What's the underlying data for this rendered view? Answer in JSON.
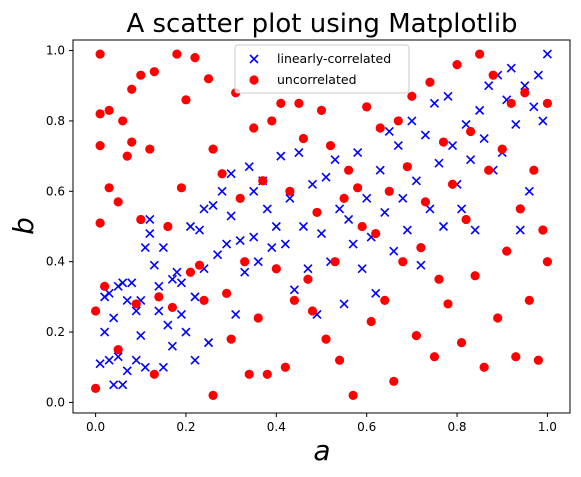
{
  "chart_data": {
    "type": "scatter",
    "title": "A scatter plot using Matplotlib",
    "xlabel": "a",
    "ylabel": "b",
    "xlim": [
      -0.05,
      1.05
    ],
    "ylim": [
      -0.03,
      1.03
    ],
    "x_ticks": [
      "0.0",
      "0.2",
      "0.4",
      "0.6",
      "0.8",
      "1.0"
    ],
    "y_ticks": [
      "0.0",
      "0.2",
      "0.4",
      "0.6",
      "0.8",
      "1.0"
    ],
    "grid": false,
    "legend_position": "top-center",
    "series": [
      {
        "name": "linearly-correlated",
        "marker": "x",
        "color": "#0000ff",
        "points": [
          [
            0.01,
            0.11
          ],
          [
            0.02,
            0.2
          ],
          [
            0.02,
            0.3
          ],
          [
            0.03,
            0.12
          ],
          [
            0.03,
            0.31
          ],
          [
            0.04,
            0.24
          ],
          [
            0.04,
            0.05
          ],
          [
            0.05,
            0.13
          ],
          [
            0.05,
            0.33
          ],
          [
            0.06,
            0.05
          ],
          [
            0.06,
            0.34
          ],
          [
            0.07,
            0.29
          ],
          [
            0.07,
            0.09
          ],
          [
            0.08,
            0.34
          ],
          [
            0.09,
            0.26
          ],
          [
            0.09,
            0.12
          ],
          [
            0.1,
            0.19
          ],
          [
            0.1,
            0.29
          ],
          [
            0.11,
            0.44
          ],
          [
            0.11,
            0.1
          ],
          [
            0.12,
            0.48
          ],
          [
            0.12,
            0.52
          ],
          [
            0.13,
            0.39
          ],
          [
            0.14,
            0.26
          ],
          [
            0.14,
            0.33
          ],
          [
            0.15,
            0.44
          ],
          [
            0.15,
            0.1
          ],
          [
            0.16,
            0.22
          ],
          [
            0.17,
            0.35
          ],
          [
            0.17,
            0.16
          ],
          [
            0.18,
            0.37
          ],
          [
            0.19,
            0.34
          ],
          [
            0.19,
            0.25
          ],
          [
            0.2,
            0.2
          ],
          [
            0.21,
            0.5
          ],
          [
            0.22,
            0.12
          ],
          [
            0.22,
            0.3
          ],
          [
            0.23,
            0.49
          ],
          [
            0.24,
            0.55
          ],
          [
            0.24,
            0.38
          ],
          [
            0.25,
            0.17
          ],
          [
            0.26,
            0.56
          ],
          [
            0.27,
            0.42
          ],
          [
            0.28,
            0.6
          ],
          [
            0.29,
            0.45
          ],
          [
            0.3,
            0.53
          ],
          [
            0.3,
            0.65
          ],
          [
            0.31,
            0.25
          ],
          [
            0.32,
            0.46
          ],
          [
            0.33,
            0.37
          ],
          [
            0.34,
            0.67
          ],
          [
            0.35,
            0.47
          ],
          [
            0.35,
            0.6
          ],
          [
            0.36,
            0.4
          ],
          [
            0.37,
            0.63
          ],
          [
            0.38,
            0.55
          ],
          [
            0.39,
            0.44
          ],
          [
            0.4,
            0.5
          ],
          [
            0.41,
            0.7
          ],
          [
            0.42,
            0.45
          ],
          [
            0.43,
            0.58
          ],
          [
            0.44,
            0.32
          ],
          [
            0.45,
            0.71
          ],
          [
            0.46,
            0.5
          ],
          [
            0.47,
            0.38
          ],
          [
            0.48,
            0.62
          ],
          [
            0.49,
            0.25
          ],
          [
            0.5,
            0.48
          ],
          [
            0.51,
            0.64
          ],
          [
            0.52,
            0.4
          ],
          [
            0.53,
            0.69
          ],
          [
            0.54,
            0.55
          ],
          [
            0.55,
            0.28
          ],
          [
            0.56,
            0.52
          ],
          [
            0.57,
            0.45
          ],
          [
            0.58,
            0.71
          ],
          [
            0.59,
            0.38
          ],
          [
            0.6,
            0.58
          ],
          [
            0.61,
            0.47
          ],
          [
            0.62,
            0.31
          ],
          [
            0.63,
            0.66
          ],
          [
            0.64,
            0.54
          ],
          [
            0.65,
            0.77
          ],
          [
            0.66,
            0.43
          ],
          [
            0.67,
            0.73
          ],
          [
            0.68,
            0.58
          ],
          [
            0.69,
            0.49
          ],
          [
            0.7,
            0.8
          ],
          [
            0.71,
            0.63
          ],
          [
            0.72,
            0.39
          ],
          [
            0.73,
            0.76
          ],
          [
            0.74,
            0.55
          ],
          [
            0.75,
            0.85
          ],
          [
            0.76,
            0.68
          ],
          [
            0.77,
            0.5
          ],
          [
            0.78,
            0.87
          ],
          [
            0.79,
            0.73
          ],
          [
            0.8,
            0.62
          ],
          [
            0.81,
            0.55
          ],
          [
            0.82,
            0.79
          ],
          [
            0.83,
            0.69
          ],
          [
            0.84,
            0.49
          ],
          [
            0.85,
            0.83
          ],
          [
            0.86,
            0.75
          ],
          [
            0.87,
            0.9
          ],
          [
            0.88,
            0.66
          ],
          [
            0.89,
            0.93
          ],
          [
            0.9,
            0.71
          ],
          [
            0.91,
            0.86
          ],
          [
            0.92,
            0.95
          ],
          [
            0.93,
            0.79
          ],
          [
            0.94,
            0.49
          ],
          [
            0.95,
            0.9
          ],
          [
            0.96,
            0.6
          ],
          [
            0.97,
            0.84
          ],
          [
            0.98,
            0.93
          ],
          [
            0.99,
            0.8
          ],
          [
            1.0,
            0.99
          ]
        ]
      },
      {
        "name": "uncorrelated",
        "marker": "o",
        "color": "#ff0000",
        "points": [
          [
            0.01,
            0.99
          ],
          [
            0.01,
            0.82
          ],
          [
            0.01,
            0.73
          ],
          [
            0.01,
            0.51
          ],
          [
            0.0,
            0.26
          ],
          [
            0.0,
            0.04
          ],
          [
            0.02,
            0.33
          ],
          [
            0.03,
            0.83
          ],
          [
            0.03,
            0.61
          ],
          [
            0.05,
            0.57
          ],
          [
            0.05,
            0.15
          ],
          [
            0.06,
            0.8
          ],
          [
            0.07,
            0.7
          ],
          [
            0.08,
            0.89
          ],
          [
            0.08,
            0.74
          ],
          [
            0.09,
            0.28
          ],
          [
            0.1,
            0.52
          ],
          [
            0.1,
            0.93
          ],
          [
            0.12,
            0.72
          ],
          [
            0.13,
            0.94
          ],
          [
            0.13,
            0.08
          ],
          [
            0.14,
            0.3
          ],
          [
            0.16,
            0.5
          ],
          [
            0.17,
            0.27
          ],
          [
            0.18,
            0.99
          ],
          [
            0.19,
            0.61
          ],
          [
            0.2,
            0.86
          ],
          [
            0.21,
            0.37
          ],
          [
            0.22,
            0.98
          ],
          [
            0.23,
            0.39
          ],
          [
            0.24,
            0.29
          ],
          [
            0.25,
            0.92
          ],
          [
            0.26,
            0.72
          ],
          [
            0.26,
            0.02
          ],
          [
            0.28,
            0.65
          ],
          [
            0.29,
            0.31
          ],
          [
            0.3,
            0.18
          ],
          [
            0.31,
            0.88
          ],
          [
            0.32,
            0.58
          ],
          [
            0.33,
            0.4
          ],
          [
            0.34,
            0.08
          ],
          [
            0.35,
            0.78
          ],
          [
            0.36,
            0.24
          ],
          [
            0.37,
            0.63
          ],
          [
            0.38,
            0.08
          ],
          [
            0.39,
            0.8
          ],
          [
            0.4,
            0.38
          ],
          [
            0.41,
            0.85
          ],
          [
            0.42,
            0.1
          ],
          [
            0.43,
            0.6
          ],
          [
            0.44,
            0.29
          ],
          [
            0.45,
            0.85
          ],
          [
            0.46,
            0.75
          ],
          [
            0.47,
            0.35
          ],
          [
            0.48,
            0.26
          ],
          [
            0.49,
            0.54
          ],
          [
            0.5,
            0.83
          ],
          [
            0.51,
            0.18
          ],
          [
            0.52,
            0.73
          ],
          [
            0.53,
            0.4
          ],
          [
            0.54,
            0.12
          ],
          [
            0.55,
            0.58
          ],
          [
            0.56,
            0.66
          ],
          [
            0.57,
            0.02
          ],
          [
            0.58,
            0.61
          ],
          [
            0.59,
            0.5
          ],
          [
            0.6,
            0.84
          ],
          [
            0.61,
            0.23
          ],
          [
            0.62,
            0.48
          ],
          [
            0.63,
            0.78
          ],
          [
            0.64,
            0.29
          ],
          [
            0.65,
            0.6
          ],
          [
            0.66,
            0.06
          ],
          [
            0.67,
            0.8
          ],
          [
            0.68,
            0.4
          ],
          [
            0.69,
            0.67
          ],
          [
            0.7,
            0.87
          ],
          [
            0.71,
            0.19
          ],
          [
            0.72,
            0.44
          ],
          [
            0.73,
            0.57
          ],
          [
            0.74,
            0.91
          ],
          [
            0.75,
            0.13
          ],
          [
            0.76,
            0.35
          ],
          [
            0.77,
            0.74
          ],
          [
            0.78,
            0.28
          ],
          [
            0.79,
            0.62
          ],
          [
            0.8,
            0.96
          ],
          [
            0.81,
            0.17
          ],
          [
            0.82,
            0.52
          ],
          [
            0.83,
            0.77
          ],
          [
            0.84,
            0.36
          ],
          [
            0.85,
            0.99
          ],
          [
            0.86,
            0.1
          ],
          [
            0.87,
            0.66
          ],
          [
            0.88,
            0.93
          ],
          [
            0.89,
            0.24
          ],
          [
            0.9,
            0.72
          ],
          [
            0.91,
            0.43
          ],
          [
            0.92,
            0.85
          ],
          [
            0.93,
            0.13
          ],
          [
            0.94,
            0.55
          ],
          [
            0.95,
            0.88
          ],
          [
            0.96,
            0.29
          ],
          [
            0.97,
            0.66
          ],
          [
            0.98,
            0.12
          ],
          [
            0.99,
            0.49
          ],
          [
            1.0,
            0.85
          ],
          [
            1.0,
            0.4
          ]
        ]
      }
    ]
  }
}
